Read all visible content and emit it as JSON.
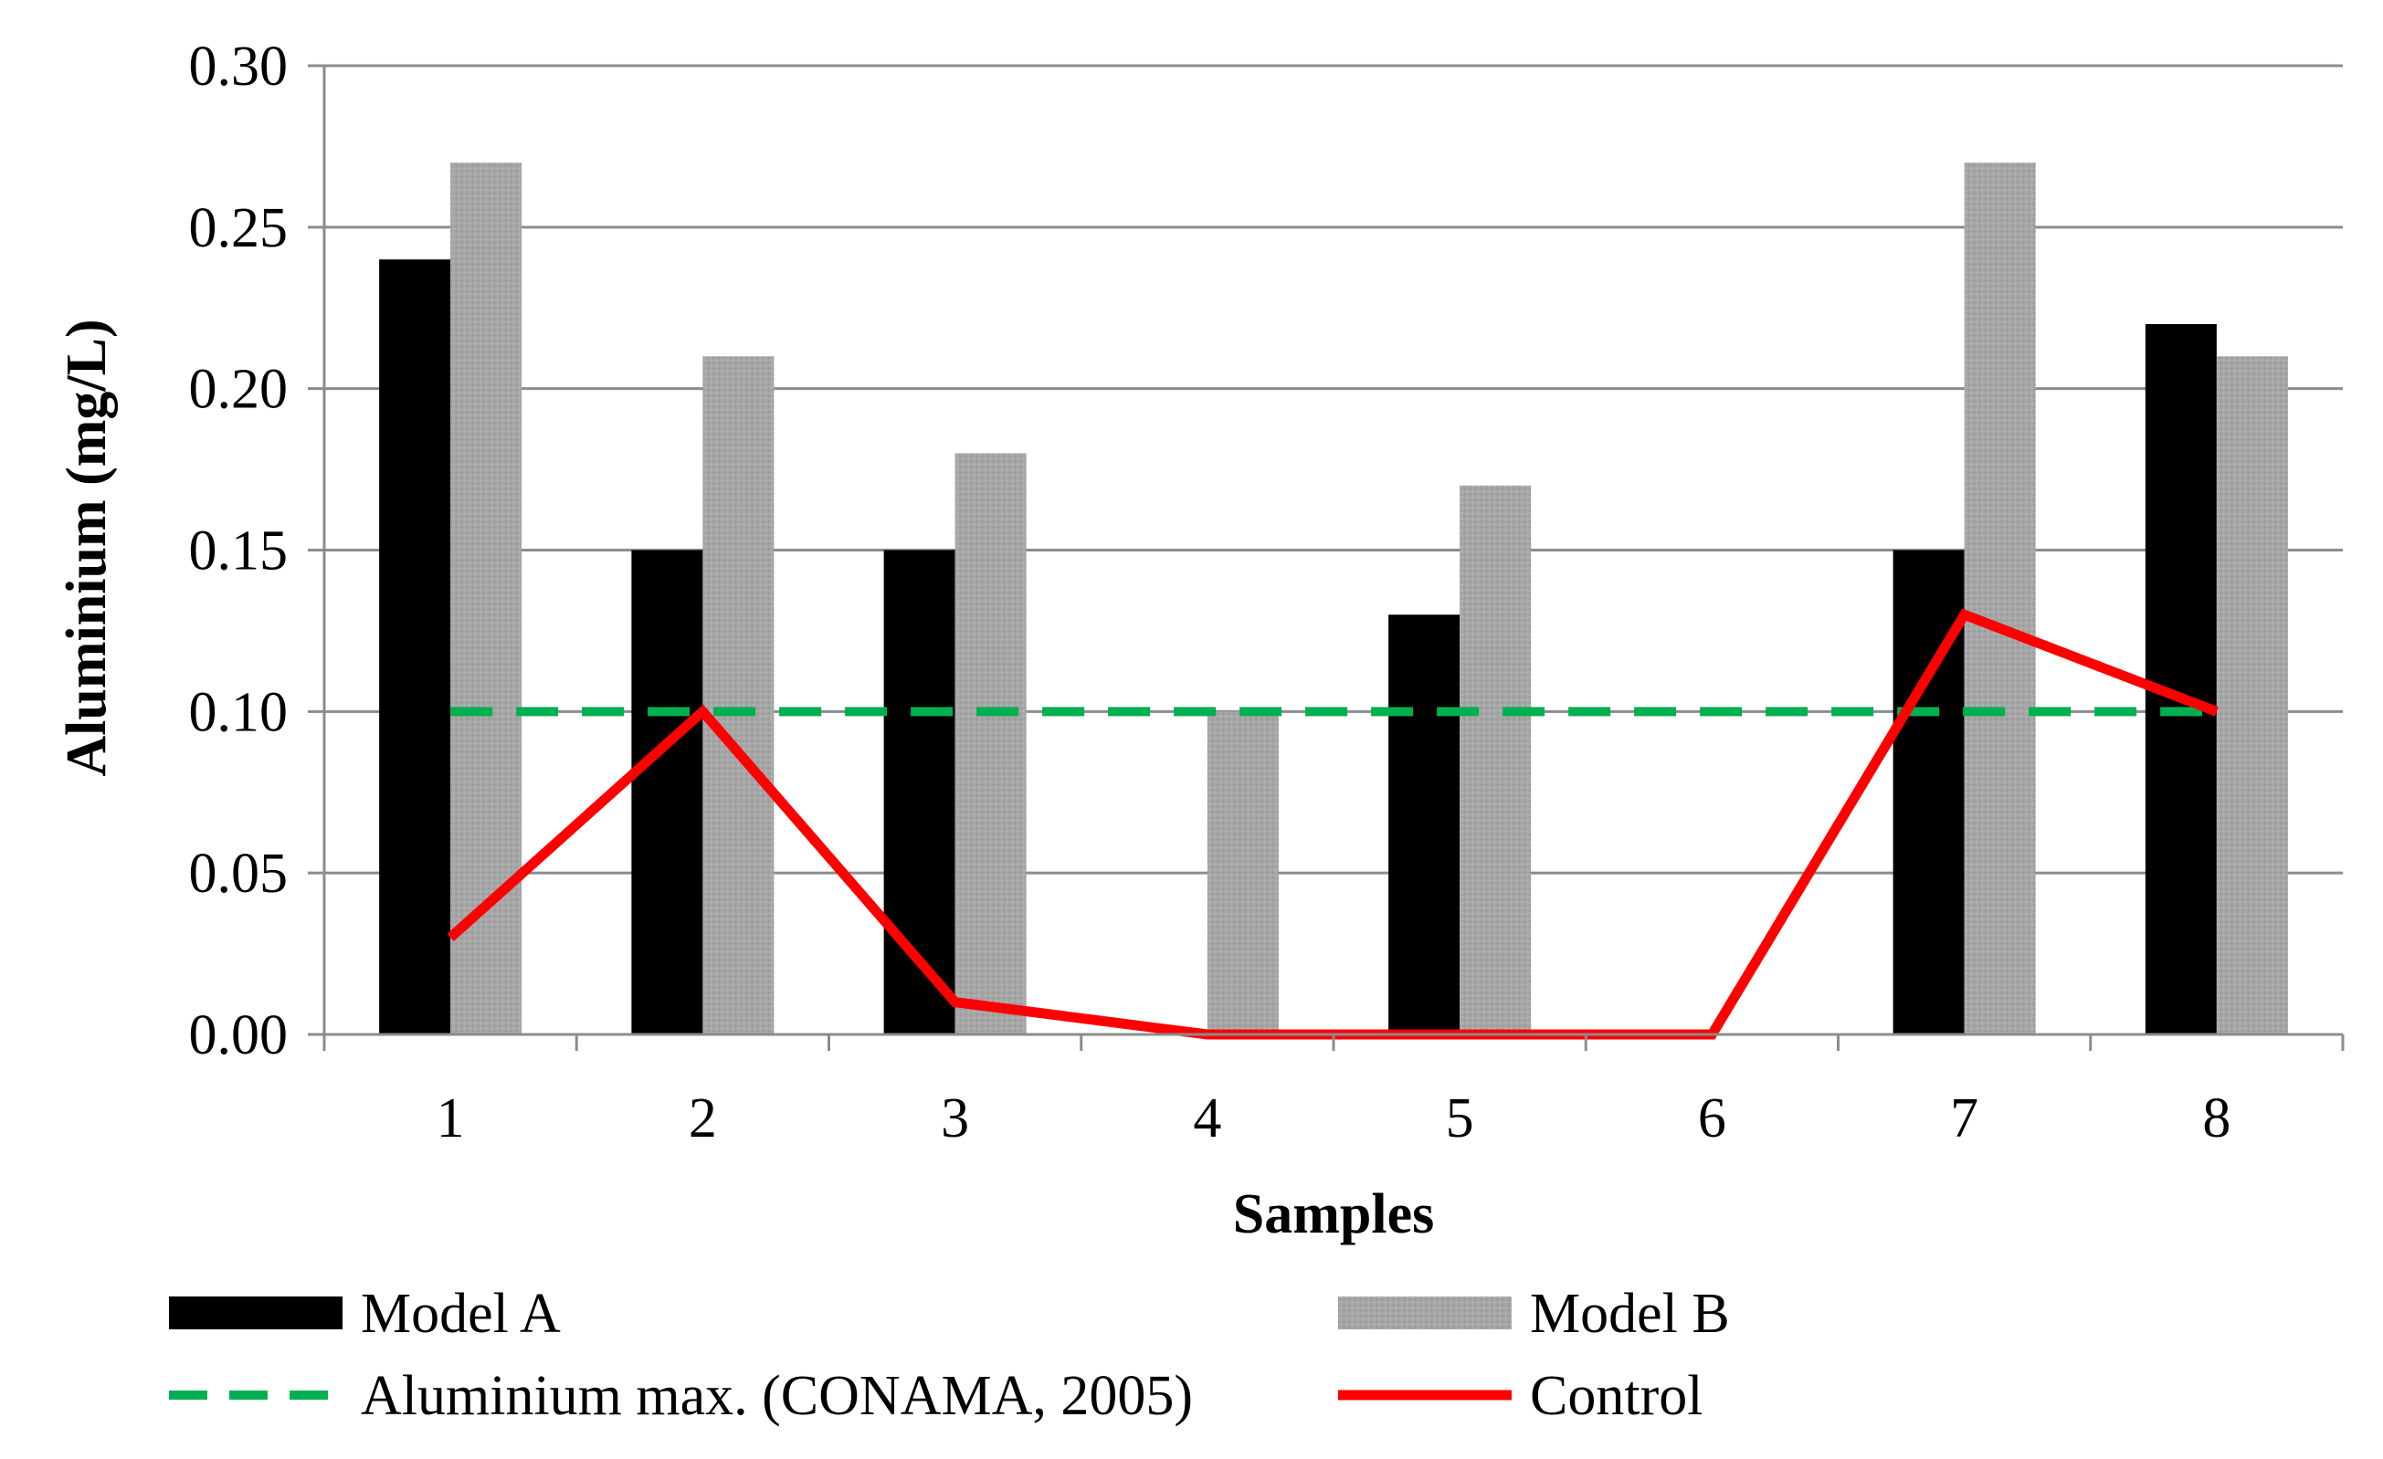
{
  "chart_data": {
    "type": "bar",
    "title": "",
    "xlabel": "Samples",
    "ylabel": "Aluminium  (mg/L)",
    "categories": [
      "1",
      "2",
      "3",
      "4",
      "5",
      "6",
      "7",
      "8"
    ],
    "ylim": [
      0,
      0.3
    ],
    "yticks": [
      "0.00",
      "0.05",
      "0.10",
      "0.15",
      "0.20",
      "0.25",
      "0.30"
    ],
    "grid": true,
    "legend_position": "bottom",
    "series": [
      {
        "name": "Model A",
        "kind": "bar",
        "color": "#000000",
        "values": [
          0.24,
          0.15,
          0.15,
          0.0,
          0.13,
          0.0,
          0.15,
          0.22
        ]
      },
      {
        "name": "Model B",
        "kind": "bar",
        "color": "#a6a6a6",
        "values": [
          0.27,
          0.21,
          0.18,
          0.1,
          0.17,
          0.0,
          0.27,
          0.21
        ]
      },
      {
        "name": "Aluminium max. (CONAMA, 2005)",
        "kind": "line",
        "style": "dashed",
        "color": "#00b050",
        "values": [
          0.1,
          0.1,
          0.1,
          0.1,
          0.1,
          0.1,
          0.1,
          0.1
        ]
      },
      {
        "name": "Control",
        "kind": "line",
        "style": "solid",
        "color": "#ff0000",
        "values": [
          0.03,
          0.1,
          0.01,
          0.0,
          0.0,
          0.0,
          0.13,
          0.1
        ]
      }
    ]
  }
}
